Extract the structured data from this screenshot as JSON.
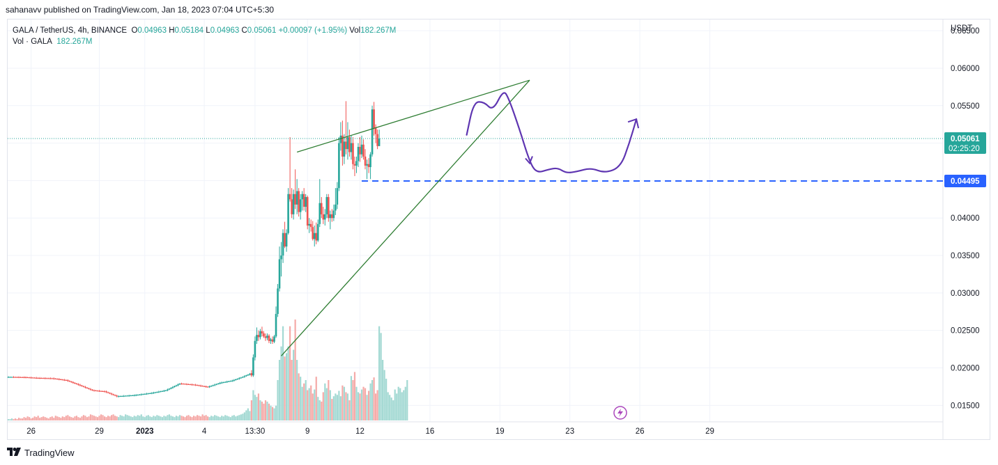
{
  "header": {
    "publisher_line": "sahanavv published on TradingView.com, Jan 18, 2023 07:04 UTC+5:30"
  },
  "legend": {
    "symbol": "GALA / TetherUS, 4h, BINANCE",
    "open_label": "O",
    "open": "0.04963",
    "high_label": "H",
    "high": "0.05184",
    "low_label": "L",
    "low": "0.04963",
    "close_label": "C",
    "close": "0.05061",
    "change": "+0.00097 (+1.95%)",
    "vol_label": "Vol",
    "vol": "182.267M",
    "vol_series": "Vol · GALA",
    "vol_series_value": "182.267M"
  },
  "footer": {
    "logo_text": "TradingView",
    "logo_icon": "tradingview-logo-icon"
  },
  "colors": {
    "up": "#26a69a",
    "down": "#ef5350",
    "vol_up": "#a3d9d3",
    "vol_down": "#f5aaa8",
    "trendline": "#2e7d32",
    "support": "#2962ff",
    "projection": "#5e35b1",
    "price_tag": "#26a69a"
  },
  "chart_data": {
    "type": "candlestick",
    "y_axis": {
      "unit_label": "USDT",
      "range": [
        0.0128,
        0.0665
      ],
      "ticks": [
        "0.06500",
        "0.06000",
        "0.05500",
        "0.05000",
        "0.04500",
        "0.04000",
        "0.03500",
        "0.03000",
        "0.02500",
        "0.02000",
        "0.01500"
      ],
      "tick_values": [
        0.065,
        0.06,
        0.055,
        0.05,
        0.045,
        0.04,
        0.035,
        0.03,
        0.025,
        0.02,
        0.015
      ]
    },
    "x_axis": {
      "ticks": [
        "26",
        "29",
        "2023",
        "4",
        "13:30",
        "9",
        "12",
        "16",
        "19",
        "23",
        "26",
        "29"
      ],
      "tick_bar_index": [
        13,
        52,
        78,
        112,
        141,
        171,
        201,
        241,
        281,
        321,
        361,
        401
      ]
    },
    "current_price": {
      "value": 0.05061,
      "label": "0.05061",
      "countdown": "02:25:20"
    },
    "support_level": {
      "value": 0.04495,
      "label": "0.04495"
    },
    "pattern": {
      "name": "rising wedge",
      "upper_line": {
        "from": [
          165,
          0.0488
        ],
        "to": [
          298,
          0.0584
        ]
      },
      "lower_line": {
        "from": [
          156,
          0.0216
        ],
        "to": [
          298,
          0.0584
        ]
      }
    },
    "projection_path": [
      [
        262,
        0.0511
      ],
      [
        266,
        0.0555
      ],
      [
        272,
        0.0555
      ],
      [
        277,
        0.0543
      ],
      [
        283,
        0.0571
      ],
      [
        286,
        0.056
      ],
      [
        292,
        0.052
      ],
      [
        298,
        0.0475
      ],
      [
        302,
        0.046
      ],
      [
        309,
        0.0465
      ],
      [
        314,
        0.0467
      ],
      [
        319,
        0.046
      ],
      [
        325,
        0.0462
      ],
      [
        333,
        0.0467
      ],
      [
        341,
        0.046
      ],
      [
        350,
        0.0468
      ],
      [
        355,
        0.05
      ],
      [
        359,
        0.0532
      ]
    ],
    "candles": [
      {
        "p": "s",
        "from": 0,
        "to": 2,
        "v": 0.01878
      },
      {
        "p": "s",
        "from": 3,
        "to": 9,
        "v": 0.01875
      },
      {
        "p": "s",
        "from": 10,
        "to": 17,
        "v": 0.01865
      },
      {
        "p": "s",
        "from": 18,
        "to": 25,
        "v": 0.0186
      },
      {
        "p": "s",
        "from": 26,
        "to": 33,
        "v": 0.01835
      },
      {
        "p": "s",
        "from": 34,
        "to": 40,
        "v": 0.01775
      },
      {
        "p": "s",
        "from": 41,
        "to": 48,
        "v": 0.017
      },
      {
        "p": "s",
        "from": 49,
        "to": 55,
        "v": 0.01685
      },
      {
        "p": "s",
        "from": 56,
        "to": 62,
        "v": 0.0162
      },
      {
        "p": "s",
        "from": 63,
        "to": 72,
        "v": 0.01635
      },
      {
        "p": "s",
        "from": 73,
        "to": 82,
        "v": 0.01665
      },
      {
        "p": "s",
        "from": 83,
        "to": 90,
        "v": 0.017
      },
      {
        "p": "s",
        "from": 91,
        "to": 98,
        "v": 0.0179
      },
      {
        "p": "s",
        "from": 99,
        "to": 106,
        "v": 0.01775
      },
      {
        "p": "s",
        "from": 107,
        "to": 114,
        "v": 0.01745
      },
      {
        "p": "s",
        "from": 115,
        "to": 121,
        "v": 0.018
      },
      {
        "p": "s",
        "from": 122,
        "to": 128,
        "v": 0.0183
      },
      {
        "p": "s",
        "from": 129,
        "to": 134,
        "v": 0.0188
      },
      {
        "p": "s",
        "from": 135,
        "to": 138,
        "v": 0.0192
      },
      {
        "o": 0.0193,
        "h": 0.0197,
        "l": 0.0188,
        "c": 0.019
      },
      {
        "o": 0.019,
        "h": 0.0218,
        "l": 0.0188,
        "c": 0.0214
      },
      {
        "o": 0.0214,
        "h": 0.0242,
        "l": 0.021,
        "c": 0.0236
      },
      {
        "o": 0.0236,
        "h": 0.0254,
        "l": 0.0232,
        "c": 0.0244
      },
      {
        "o": 0.0244,
        "h": 0.025,
        "l": 0.0236,
        "c": 0.0241
      },
      {
        "o": 0.0241,
        "h": 0.0252,
        "l": 0.0238,
        "c": 0.0249
      },
      {
        "o": 0.0249,
        "h": 0.0255,
        "l": 0.0242,
        "c": 0.0246
      },
      {
        "o": 0.0246,
        "h": 0.0249,
        "l": 0.024,
        "c": 0.0242
      },
      {
        "o": 0.0242,
        "h": 0.0246,
        "l": 0.0236,
        "c": 0.024
      },
      {
        "o": 0.024,
        "h": 0.0246,
        "l": 0.0237,
        "c": 0.0243
      },
      {
        "o": 0.0243,
        "h": 0.0245,
        "l": 0.0233,
        "c": 0.0236
      },
      {
        "o": 0.0236,
        "h": 0.024,
        "l": 0.0232,
        "c": 0.0238
      },
      {
        "o": 0.0238,
        "h": 0.0242,
        "l": 0.0232,
        "c": 0.0235
      },
      {
        "o": 0.0235,
        "h": 0.0244,
        "l": 0.0233,
        "c": 0.0242
      },
      {
        "o": 0.0242,
        "h": 0.0282,
        "l": 0.024,
        "c": 0.0272
      },
      {
        "o": 0.0272,
        "h": 0.0312,
        "l": 0.0268,
        "c": 0.0306
      },
      {
        "o": 0.0306,
        "h": 0.0362,
        "l": 0.0302,
        "c": 0.0345
      },
      {
        "o": 0.0345,
        "h": 0.0368,
        "l": 0.0322,
        "c": 0.035
      },
      {
        "o": 0.035,
        "h": 0.0385,
        "l": 0.034,
        "c": 0.038
      },
      {
        "o": 0.038,
        "h": 0.0395,
        "l": 0.036,
        "c": 0.0362
      },
      {
        "o": 0.0362,
        "h": 0.0385,
        "l": 0.0355,
        "c": 0.038
      },
      {
        "o": 0.038,
        "h": 0.044,
        "l": 0.0378,
        "c": 0.0432
      },
      {
        "o": 0.0432,
        "h": 0.0508,
        "l": 0.0422,
        "c": 0.0425
      },
      {
        "o": 0.0425,
        "h": 0.044,
        "l": 0.04,
        "c": 0.0405
      },
      {
        "o": 0.0405,
        "h": 0.0438,
        "l": 0.0398,
        "c": 0.0432
      },
      {
        "o": 0.0432,
        "h": 0.0465,
        "l": 0.0412,
        "c": 0.0418
      },
      {
        "o": 0.0418,
        "h": 0.0452,
        "l": 0.0405,
        "c": 0.0436
      },
      {
        "o": 0.0436,
        "h": 0.044,
        "l": 0.0402,
        "c": 0.0408
      },
      {
        "o": 0.0408,
        "h": 0.0432,
        "l": 0.0398,
        "c": 0.0425
      },
      {
        "o": 0.0425,
        "h": 0.0436,
        "l": 0.041,
        "c": 0.0432
      },
      {
        "o": 0.0432,
        "h": 0.044,
        "l": 0.041,
        "c": 0.0415
      },
      {
        "o": 0.0415,
        "h": 0.0432,
        "l": 0.0408,
        "c": 0.0428
      },
      {
        "o": 0.0428,
        "h": 0.043,
        "l": 0.0385,
        "c": 0.039
      },
      {
        "o": 0.039,
        "h": 0.04,
        "l": 0.038,
        "c": 0.0392
      },
      {
        "o": 0.0392,
        "h": 0.0398,
        "l": 0.0382,
        "c": 0.0388
      },
      {
        "o": 0.0388,
        "h": 0.0396,
        "l": 0.037,
        "c": 0.0372
      },
      {
        "o": 0.0372,
        "h": 0.039,
        "l": 0.0362,
        "c": 0.038
      },
      {
        "o": 0.038,
        "h": 0.0394,
        "l": 0.0365,
        "c": 0.037
      },
      {
        "o": 0.037,
        "h": 0.0398,
        "l": 0.0368,
        "c": 0.0392
      },
      {
        "o": 0.0392,
        "h": 0.0452,
        "l": 0.0388,
        "c": 0.042
      },
      {
        "o": 0.042,
        "h": 0.0428,
        "l": 0.04,
        "c": 0.0405
      },
      {
        "o": 0.0405,
        "h": 0.0415,
        "l": 0.0392,
        "c": 0.0398
      },
      {
        "o": 0.0398,
        "h": 0.0412,
        "l": 0.039,
        "c": 0.0405
      },
      {
        "o": 0.0405,
        "h": 0.0432,
        "l": 0.04,
        "c": 0.0428
      },
      {
        "o": 0.0428,
        "h": 0.0432,
        "l": 0.0395,
        "c": 0.04
      },
      {
        "o": 0.04,
        "h": 0.041,
        "l": 0.0385,
        "c": 0.0405
      },
      {
        "o": 0.0405,
        "h": 0.0412,
        "l": 0.0395,
        "c": 0.04
      },
      {
        "o": 0.04,
        "h": 0.0418,
        "l": 0.0396,
        "c": 0.041
      },
      {
        "o": 0.041,
        "h": 0.044,
        "l": 0.0404,
        "c": 0.0418
      },
      {
        "o": 0.0418,
        "h": 0.0448,
        "l": 0.0412,
        "c": 0.044
      },
      {
        "o": 0.044,
        "h": 0.0508,
        "l": 0.0436,
        "c": 0.05
      },
      {
        "o": 0.05,
        "h": 0.0528,
        "l": 0.049,
        "c": 0.051
      },
      {
        "o": 0.051,
        "h": 0.053,
        "l": 0.047,
        "c": 0.0482
      },
      {
        "o": 0.0482,
        "h": 0.0512,
        "l": 0.0472,
        "c": 0.0502
      },
      {
        "o": 0.0502,
        "h": 0.0556,
        "l": 0.0485,
        "c": 0.0492
      },
      {
        "o": 0.0492,
        "h": 0.0528,
        "l": 0.0478,
        "c": 0.0508
      },
      {
        "o": 0.0508,
        "h": 0.0518,
        "l": 0.0482,
        "c": 0.0488
      },
      {
        "o": 0.0488,
        "h": 0.051,
        "l": 0.0478,
        "c": 0.05
      },
      {
        "o": 0.05,
        "h": 0.0508,
        "l": 0.0465,
        "c": 0.0472
      },
      {
        "o": 0.0472,
        "h": 0.0482,
        "l": 0.0456,
        "c": 0.047
      },
      {
        "o": 0.047,
        "h": 0.0482,
        "l": 0.046,
        "c": 0.0476
      },
      {
        "o": 0.0476,
        "h": 0.05,
        "l": 0.0468,
        "c": 0.0495
      },
      {
        "o": 0.0495,
        "h": 0.0508,
        "l": 0.0475,
        "c": 0.0485
      },
      {
        "o": 0.0485,
        "h": 0.051,
        "l": 0.048,
        "c": 0.0498
      },
      {
        "o": 0.0498,
        "h": 0.0505,
        "l": 0.0478,
        "c": 0.0482
      },
      {
        "o": 0.0482,
        "h": 0.0492,
        "l": 0.0465,
        "c": 0.047
      },
      {
        "o": 0.047,
        "h": 0.0478,
        "l": 0.0452,
        "c": 0.0472
      },
      {
        "o": 0.0472,
        "h": 0.048,
        "l": 0.046,
        "c": 0.0468
      },
      {
        "o": 0.0468,
        "h": 0.0488,
        "l": 0.0452,
        "c": 0.0485
      },
      {
        "o": 0.0485,
        "h": 0.055,
        "l": 0.0482,
        "c": 0.0545
      },
      {
        "o": 0.0545,
        "h": 0.0555,
        "l": 0.051,
        "c": 0.052
      },
      {
        "o": 0.052,
        "h": 0.0525,
        "l": 0.05,
        "c": 0.0512
      },
      {
        "o": 0.0512,
        "h": 0.0518,
        "l": 0.0492,
        "c": 0.0496
      },
      {
        "o": 0.0496,
        "h": 0.0518,
        "l": 0.0496,
        "c": 0.0506
      }
    ],
    "volume": [
      {
        "from": 0,
        "to": 134,
        "values": [
          2,
          2,
          3,
          2,
          3,
          2,
          4,
          3,
          3,
          5,
          4,
          6,
          5,
          3,
          4,
          6,
          5,
          7,
          4,
          5,
          6,
          5,
          4,
          3,
          5,
          6,
          4,
          7,
          6,
          5,
          4,
          6,
          5,
          7,
          8,
          6,
          5,
          4,
          6,
          7,
          5,
          4,
          6,
          8,
          7,
          5,
          6,
          9,
          8,
          7,
          6,
          5,
          7,
          9,
          8,
          6,
          5,
          7,
          6,
          8,
          9,
          7,
          6,
          5,
          8,
          7,
          6,
          9,
          8,
          7,
          6,
          5,
          7,
          6,
          8,
          7,
          9,
          6,
          5,
          7,
          8,
          6,
          5,
          7,
          6,
          8,
          7,
          6,
          5,
          7,
          6,
          8,
          9,
          7,
          6,
          5,
          7,
          6,
          8,
          7,
          6,
          5,
          7,
          8,
          6,
          5,
          7,
          6,
          8,
          7,
          6,
          9,
          7,
          8,
          6,
          5,
          7,
          6,
          8,
          7,
          6,
          5,
          7,
          6,
          8,
          7,
          6,
          5,
          7,
          8,
          6,
          7,
          8,
          9,
          10
        ]
      },
      {
        "from": 135,
        "to": 138,
        "values": [
          12,
          15,
          18,
          14
        ]
      },
      {
        "from": 139,
        "to": 228,
        "values": [
          30,
          45,
          38,
          35,
          40,
          30,
          28,
          25,
          30,
          28,
          25,
          22,
          20,
          18,
          22,
          60,
          90,
          110,
          140,
          95,
          100,
          110,
          140,
          90,
          105,
          150,
          90,
          70,
          65,
          50,
          55,
          60,
          45,
          48,
          52,
          40,
          46,
          65,
          35,
          30,
          28,
          42,
          55,
          48,
          60,
          45,
          32,
          36,
          40,
          38,
          44,
          36,
          52,
          50,
          42,
          40,
          30,
          66,
          60,
          72,
          50,
          42,
          40,
          46,
          50,
          48,
          38,
          44,
          55,
          60,
          64,
          40,
          45,
          140,
          130,
          90,
          75,
          62,
          42,
          38,
          34,
          30,
          46,
          40,
          50,
          48,
          42,
          45,
          50,
          60
        ]
      }
    ]
  }
}
